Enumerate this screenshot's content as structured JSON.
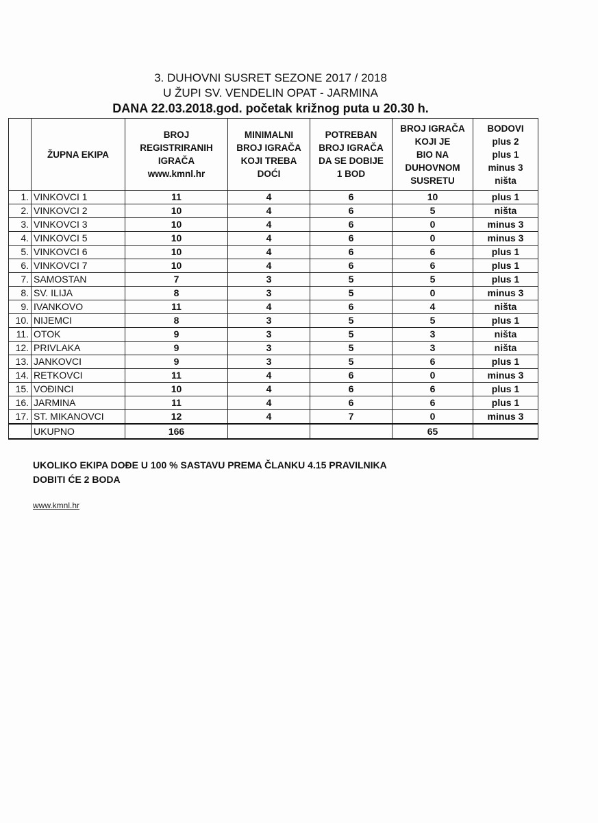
{
  "title": {
    "line1": "3. DUHOVNI SUSRET SEZONE 2017 / 2018",
    "line2": "U ŽUPI SV. VENDELIN OPAT - JARMINA",
    "line3": "DANA 22.03.2018.god. početak križnog puta u 20.30 h."
  },
  "table": {
    "headers": [
      "",
      "ŽUPNA EKIPA",
      "BROJ\nREGISTRIRANIH\nIGRAČA\nwww.kmnl.hr",
      "MINIMALNI\nBROJ IGRAČA\nKOJI TREBA\nDOĆI",
      "POTREBAN\nBROJ IGRAČA\nDA SE DOBIJE\n1 BOD",
      "BROJ IGRAČA\nKOJI JE\nBIO NA\nDUHOVNOM\nSUSRETU",
      "BODOVI\nplus 2\nplus 1\nminus 3\nništa"
    ],
    "rows": [
      [
        "1.",
        "VINKOVCI 1",
        "11",
        "4",
        "6",
        "10",
        "plus 1"
      ],
      [
        "2.",
        "VINKOVCI 2",
        "10",
        "4",
        "6",
        "5",
        "ništa"
      ],
      [
        "3.",
        "VINKOVCI 3",
        "10",
        "4",
        "6",
        "0",
        "minus 3"
      ],
      [
        "4.",
        "VINKOVCI 5",
        "10",
        "4",
        "6",
        "0",
        "minus 3"
      ],
      [
        "5.",
        "VINKOVCI 6",
        "10",
        "4",
        "6",
        "6",
        "plus 1"
      ],
      [
        "6.",
        "VINKOVCI 7",
        "10",
        "4",
        "6",
        "6",
        "plus 1"
      ],
      [
        "7.",
        "SAMOSTAN",
        "7",
        "3",
        "5",
        "5",
        "plus 1"
      ],
      [
        "8.",
        "SV. ILIJA",
        "8",
        "3",
        "5",
        "0",
        "minus 3"
      ],
      [
        "9.",
        "IVANKOVO",
        "11",
        "4",
        "6",
        "4",
        "ništa"
      ],
      [
        "10.",
        "NIJEMCI",
        "8",
        "3",
        "5",
        "5",
        "plus 1"
      ],
      [
        "11.",
        "OTOK",
        "9",
        "3",
        "5",
        "3",
        "ništa"
      ],
      [
        "12.",
        "PRIVLAKA",
        "9",
        "3",
        "5",
        "3",
        "ništa"
      ],
      [
        "13.",
        "JANKOVCI",
        "9",
        "3",
        "5",
        "6",
        "plus 1"
      ],
      [
        "14.",
        "RETKOVCI",
        "11",
        "4",
        "6",
        "0",
        "minus 3"
      ],
      [
        "15.",
        "VOĐINCI",
        "10",
        "4",
        "6",
        "6",
        "plus 1"
      ],
      [
        "16.",
        "JARMINA",
        "11",
        "4",
        "6",
        "6",
        "plus 1"
      ],
      [
        "17.",
        "ST. MIKANOVCI",
        "12",
        "4",
        "7",
        "0",
        "minus 3"
      ]
    ],
    "total": [
      "",
      "UKUPNO",
      "166",
      "",
      "",
      "65",
      ""
    ]
  },
  "note": {
    "line1": "UKOLIKO EKIPA DOĐE U 100 % SASTAVU PREMA ČLANKU  4.15  PRAVILNIKA",
    "line2": "DOBITI ĆE 2 BODA"
  },
  "link": "www.kmnl.hr"
}
